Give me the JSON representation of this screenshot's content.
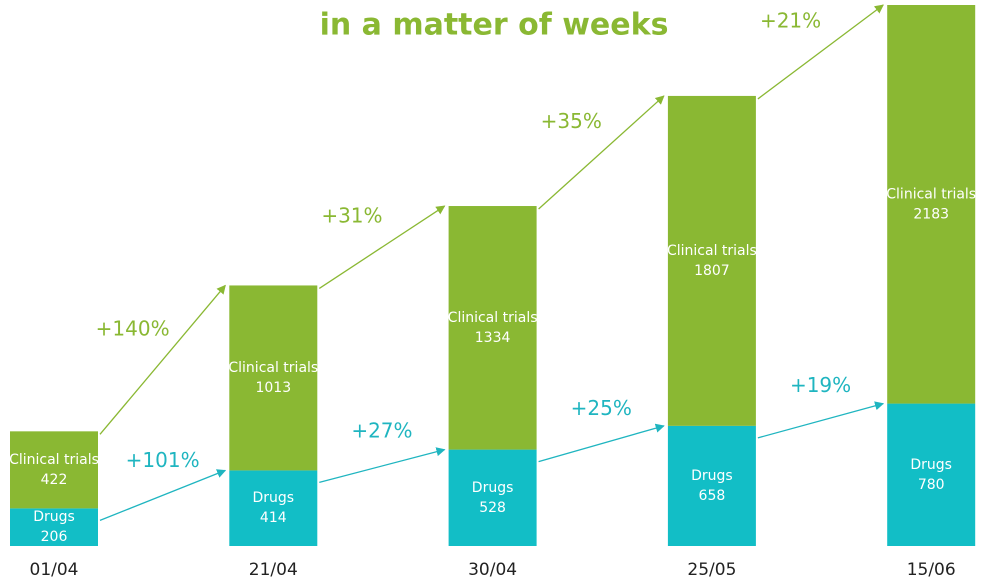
{
  "chart_data": {
    "type": "stacked-bar",
    "title": "in a matter of weeks",
    "categories": [
      "01/04",
      "21/04",
      "30/04",
      "25/05",
      "15/06"
    ],
    "series": [
      {
        "name": "Drugs",
        "color": "#12bec6",
        "values": [
          206,
          414,
          528,
          658,
          780
        ]
      },
      {
        "name": "Clinical trials",
        "color": "#8ab833",
        "values": [
          422,
          1013,
          1334,
          1807,
          2183
        ]
      }
    ],
    "annotations": [
      {
        "color": "#1fb5c0",
        "labels": [
          "+101%",
          "+27%",
          "+25%",
          "+19%"
        ]
      },
      {
        "color": "#8ab833",
        "labels": [
          "+140%",
          "+31%",
          "+35%",
          "+21%"
        ]
      }
    ]
  }
}
